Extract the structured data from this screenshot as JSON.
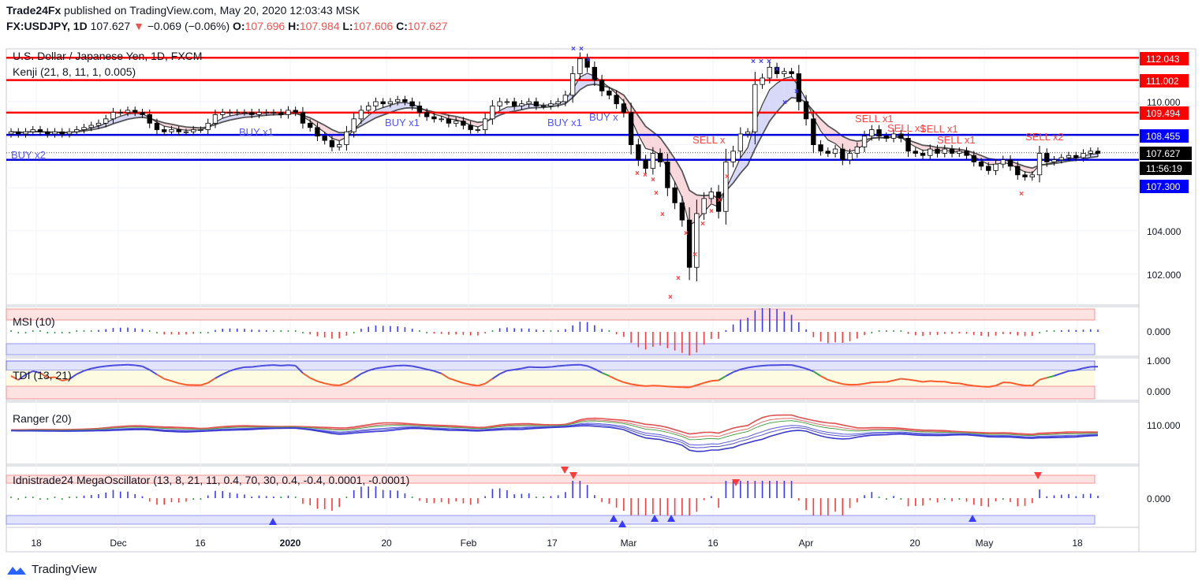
{
  "header": {
    "publisher": "Trade24Fx",
    "published_text": "published on TradingView.com, May 20, 2020 12:03:43 MSK",
    "symbol": "FX:USDJPY, 1D",
    "last": "107.627",
    "change": "−0.069 (−0.06%)",
    "o_label": "O:",
    "o": "107.696",
    "h_label": "H:",
    "h": "107.984",
    "l_label": "L:",
    "l": "107.606",
    "c_label": "C:",
    "c": "107.627"
  },
  "main_pane": {
    "title": "U.S. Dollar / Japanese Yen, 1D, FXCM",
    "indicator": "Kenji (21, 8, 11, 1, 0.005)"
  },
  "price_labels": {
    "r1": "112.043",
    "r2": "111.002",
    "r3": "109.494",
    "s1": "108.455",
    "last": "107.627",
    "countdown": "11:56:19",
    "s2": "107.300"
  },
  "main_ticks": [
    "110.000",
    "104.000",
    "102.000"
  ],
  "signals": [
    {
      "text": "BUY x2"
    },
    {
      "text": "BUY x1"
    },
    {
      "text": "BUY x1"
    },
    {
      "text": "BUY x1"
    },
    {
      "text": "BUY x"
    },
    {
      "text": "SELL x"
    },
    {
      "text": "SELL x1"
    },
    {
      "text": "SELL x1"
    },
    {
      "text": "SELL x1"
    },
    {
      "text": "SELL x1"
    },
    {
      "text": "SELL x2"
    }
  ],
  "panes": {
    "msi": {
      "title": "MSI (10)",
      "tick": "0.000"
    },
    "tdi": {
      "title": "TDI (13, 21)",
      "tick_top": "1.000",
      "tick_bottom": "0.000"
    },
    "ranger": {
      "title": "Ranger (20)",
      "tick": "110.000"
    },
    "mega": {
      "title": "Idnistrade24 MegaOscillator (13, 8, 21, 11, 0.4, 70, 30, 0.4, -0.4, 0.0001, -0.0001)",
      "tick": "0.000"
    }
  },
  "x_axis": [
    "18",
    "Dec",
    "16",
    "2020",
    "20",
    "Feb",
    "17",
    "Mar",
    "16",
    "Apr",
    "20",
    "May",
    "18"
  ],
  "footer": {
    "brand": "TradingView"
  },
  "colors": {
    "up": "#ffffff",
    "down": "#000000",
    "resistance": "#ff0000",
    "support": "#0000dd",
    "buy": "#5555ff",
    "sell": "#ff4444",
    "label_red": "#ff0000",
    "label_blue": "#0000ff"
  },
  "chart_data": {
    "type": "candlestick",
    "title": "U.S. Dollar / Japanese Yen, 1D, FXCM",
    "ylim": [
      100.8,
      113.0
    ],
    "horizontal_levels": {
      "resistance": [
        112.043,
        111.002,
        109.494
      ],
      "support": [
        108.455,
        107.3
      ]
    },
    "close_series": [
      108.6,
      108.5,
      108.6,
      108.7,
      108.6,
      108.5,
      108.6,
      108.5,
      108.6,
      108.7,
      108.8,
      108.9,
      109.0,
      109.2,
      109.5,
      109.5,
      109.6,
      109.5,
      109.4,
      109.0,
      108.7,
      108.6,
      108.7,
      108.6,
      108.6,
      108.7,
      108.7,
      109.0,
      109.4,
      109.5,
      109.5,
      109.5,
      109.5,
      109.4,
      109.5,
      109.5,
      109.5,
      109.4,
      109.6,
      109.5,
      109.0,
      108.8,
      108.4,
      108.2,
      107.9,
      108.0,
      108.6,
      109.2,
      109.6,
      109.8,
      110.0,
      109.9,
      110.0,
      110.1,
      110.0,
      109.8,
      109.5,
      109.3,
      109.2,
      109.2,
      109.0,
      109.1,
      108.9,
      108.7,
      108.7,
      109.2,
      109.8,
      110.0,
      110.0,
      109.8,
      109.9,
      110.0,
      109.8,
      109.8,
      109.9,
      110.0,
      110.3,
      111.3,
      112.0,
      111.6,
      111.0,
      110.5,
      110.3,
      109.9,
      109.5,
      108.0,
      107.3,
      106.9,
      107.6,
      107.2,
      106.0,
      105.3,
      104.5,
      102.3,
      104.8,
      105.5,
      105.8,
      104.9,
      107.2,
      107.7,
      108.5,
      108.6,
      110.8,
      111.1,
      111.6,
      111.3,
      111.4,
      111.3,
      110.0,
      109.2,
      108.0,
      107.7,
      107.6,
      107.8,
      107.3,
      107.6,
      107.9,
      108.4,
      108.7,
      108.4,
      108.3,
      108.5,
      108.3,
      107.7,
      107.6,
      107.5,
      107.8,
      107.6,
      107.8,
      107.6,
      107.7,
      107.5,
      107.2,
      107.0,
      106.8,
      107.1,
      107.3,
      107.0,
      106.6,
      106.5,
      106.6,
      107.6,
      107.2,
      107.3,
      107.4,
      107.5,
      107.4,
      107.6,
      107.7,
      107.6
    ]
  }
}
